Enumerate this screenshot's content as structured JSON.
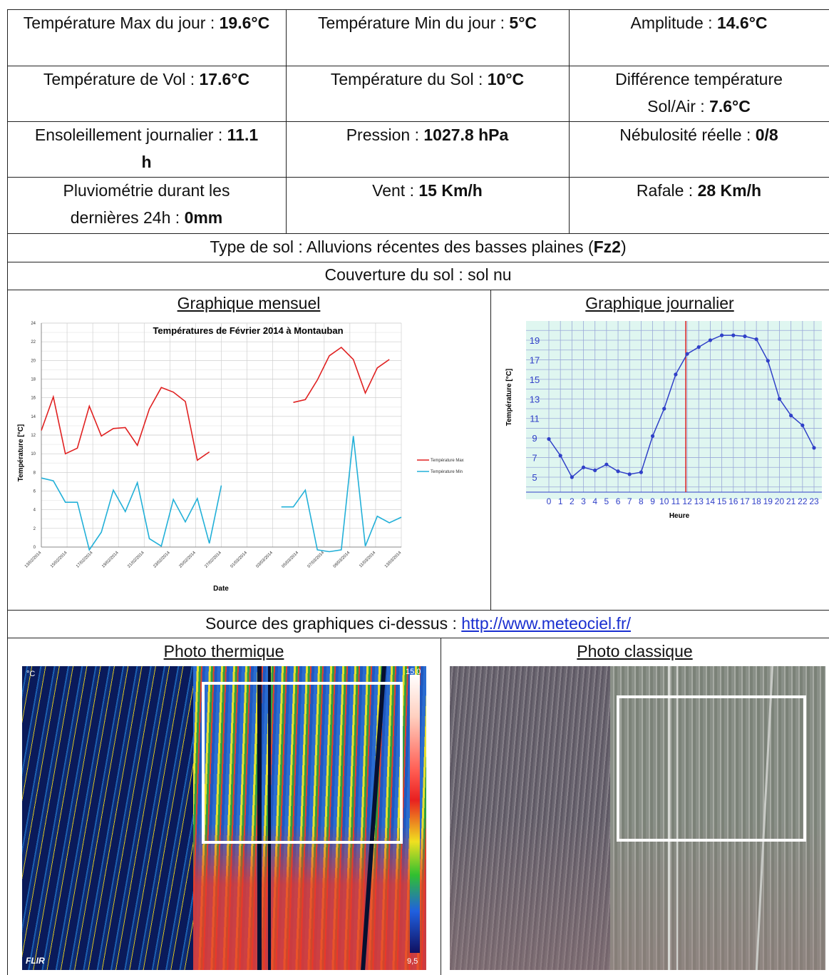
{
  "table": {
    "r1": {
      "c1": {
        "label": "Température Max du jour : ",
        "value": "19.6°C"
      },
      "c2": {
        "label": "Température Min du jour : ",
        "value": "5°C"
      },
      "c3": {
        "label": "Amplitude : ",
        "value": "14.6°C"
      }
    },
    "r2": {
      "c1": {
        "label": "Température de Vol : ",
        "value": "17.6°C"
      },
      "c2": {
        "label": "Température du Sol : ",
        "value": "10°C"
      },
      "c3": {
        "label": "Différence température Sol/Air : ",
        "value": "7.6°C"
      }
    },
    "r3": {
      "c1": {
        "label": "Ensoleillement journalier : ",
        "value": "11.1 h"
      },
      "c2": {
        "label": "Pression : ",
        "value": "1027.8 hPa"
      },
      "c3": {
        "label": "Nébulosité réelle : ",
        "value": "0/8"
      }
    },
    "r4": {
      "c1": {
        "label": "Pluviométrie durant les dernières 24h : ",
        "value": "0mm"
      },
      "c2": {
        "label": "Vent : ",
        "value": "15 Km/h"
      },
      "c3": {
        "label": "Rafale : ",
        "value": "28 Km/h"
      }
    },
    "soil_type": {
      "label": "Type de sol : Alluvions récentes des basses plaines ",
      "code_open": "(",
      "code": "Fz2",
      "code_close": ")"
    },
    "soil_cover": "Couverture du sol : sol nu",
    "monthly_heading": "Graphique mensuel",
    "daily_heading": "Graphique journalier",
    "source_label": "Source des graphiques ci-dessus : ",
    "source_url": "http://www.meteociel.fr/",
    "thermal_heading": "Photo thermique",
    "classic_heading": "Photo classique",
    "thermal_unit": "°C",
    "thermal_max": "15,0",
    "thermal_min": "9,5",
    "flir_logo": "FLIR"
  },
  "chart_data": [
    {
      "type": "line",
      "title": "Températures de Février 2014 à Montauban",
      "xlabel": "Date",
      "ylabel": "Température [°C]",
      "ylim": [
        0,
        24
      ],
      "yticks": [
        "0",
        "2",
        "4",
        "6",
        "8",
        "10",
        "12",
        "14",
        "16",
        "18",
        "20",
        "22",
        "24"
      ],
      "xticks": [
        "13/02/2014",
        "15/02/2014",
        "17/02/2014",
        "19/02/2014",
        "21/02/2014",
        "23/02/2014",
        "25/02/2014",
        "27/02/2014",
        "01/03/2014",
        "03/03/2014",
        "05/03/2014",
        "07/03/2014",
        "09/03/2014",
        "11/03/2014",
        "13/03/2014"
      ],
      "series": [
        {
          "name": "Température Max",
          "color": "#e02020",
          "values": [
            12.5,
            16.1,
            10.0,
            10.6,
            15.1,
            11.9,
            12.7,
            12.8,
            10.9,
            14.8,
            17.1,
            16.6,
            15.6,
            9.3,
            10.2,
            null,
            null,
            null,
            null,
            null,
            null,
            15.5,
            15.8,
            17.9,
            20.5,
            21.4,
            20.1,
            16.5,
            19.2,
            20.1
          ]
        },
        {
          "name": "Température Min",
          "color": "#22b0d8",
          "values": [
            7.4,
            7.1,
            4.8,
            4.8,
            -0.3,
            1.6,
            6.1,
            3.8,
            6.9,
            0.9,
            0.1,
            5.1,
            2.7,
            5.2,
            0.4,
            6.6,
            null,
            null,
            null,
            null,
            4.3,
            4.3,
            6.1,
            -0.3,
            -0.5,
            -0.3,
            11.9,
            0.1,
            3.3,
            2.6,
            3.2
          ]
        }
      ]
    },
    {
      "type": "line",
      "xlabel": "Heure",
      "ylabel": "Température [°C]",
      "yticks": [
        "5",
        "7",
        "9",
        "11",
        "13",
        "15",
        "17",
        "19"
      ],
      "x": [
        "0",
        "1",
        "2",
        "3",
        "4",
        "5",
        "6",
        "7",
        "8",
        "9",
        "10",
        "11",
        "12",
        "13",
        "14",
        "15",
        "16",
        "17",
        "18",
        "19",
        "20",
        "21",
        "22",
        "23"
      ],
      "series": [
        {
          "color": "#3040c8",
          "values": [
            8.9,
            7.2,
            5.0,
            6.0,
            5.7,
            6.3,
            5.6,
            5.3,
            5.5,
            9.2,
            12.0,
            15.5,
            17.6,
            18.3,
            19.0,
            19.5,
            19.5,
            19.4,
            19.1,
            16.9,
            13.0,
            11.3,
            10.3,
            8.0
          ]
        }
      ],
      "marker_hour": 12
    }
  ]
}
